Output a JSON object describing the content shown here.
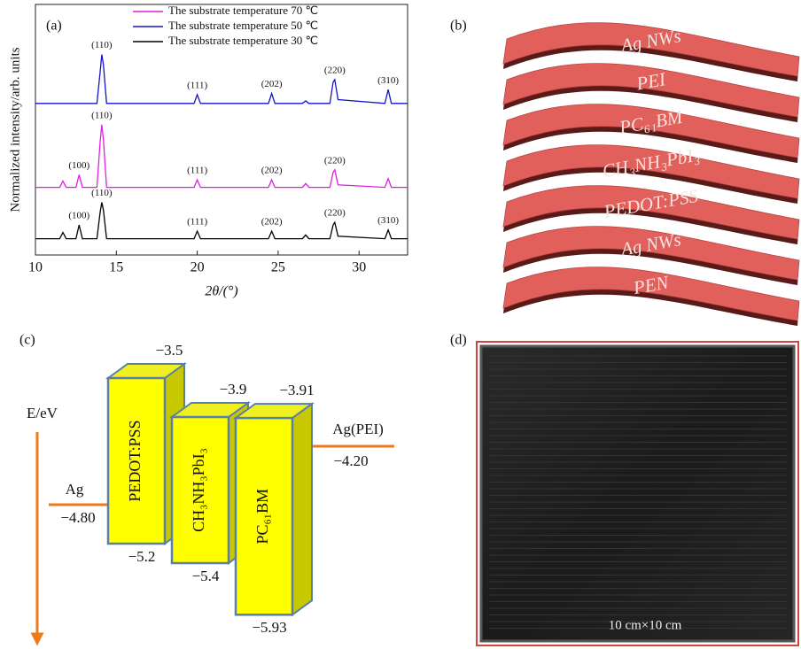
{
  "panels": {
    "a": "(a)",
    "b": "(b)",
    "c": "(c)",
    "d": "(d)"
  },
  "chart_data": {
    "type": "line",
    "x_label": "2θ/(°)",
    "y_label": "Normalized intensity/arb. units",
    "x": [
      10,
      11.5,
      11.7,
      11.9,
      12.5,
      12.7,
      12.9,
      13.8,
      14.0,
      14.1,
      14.2,
      14.4,
      16,
      17,
      19.8,
      20.0,
      20.2,
      24.4,
      24.6,
      24.8,
      26.5,
      26.7,
      26.9,
      28.2,
      28.4,
      28.5,
      28.7,
      31.6,
      31.8,
      32.0,
      33
    ],
    "xlim": [
      10,
      33
    ],
    "xticks": [
      10,
      15,
      20,
      25,
      30
    ],
    "ylim": [
      0,
      10
    ],
    "legend": "upper right",
    "series": [
      {
        "name": "The substrate temperature 70 ℃",
        "color": "#e01ee0",
        "values": [
          2.7,
          2.7,
          2.95,
          2.7,
          2.7,
          3.2,
          2.7,
          2.7,
          4.5,
          5.2,
          4.6,
          2.7,
          2.7,
          2.7,
          2.7,
          3.0,
          2.7,
          2.7,
          3.0,
          2.7,
          2.7,
          2.85,
          2.7,
          2.7,
          3.3,
          3.4,
          2.8,
          2.7,
          3.05,
          2.7,
          2.7
        ],
        "peak_labels": [
          {
            "text": "(100)",
            "x": 12.7
          },
          {
            "text": "(110)",
            "x": 14.1
          },
          {
            "text": "(111)",
            "x": 20.0
          },
          {
            "text": "(202)",
            "x": 24.6
          },
          {
            "text": "(220)",
            "x": 28.5
          }
        ]
      },
      {
        "name": "The substrate temperature 50 ℃",
        "color": "#1414c8",
        "values": [
          6.05,
          6.05,
          6.05,
          6.05,
          6.05,
          6.05,
          6.05,
          6.05,
          7.3,
          8.0,
          7.6,
          6.05,
          6.05,
          6.05,
          6.05,
          6.4,
          6.05,
          6.05,
          6.45,
          6.05,
          6.05,
          6.15,
          6.05,
          6.05,
          6.9,
          7.0,
          6.2,
          6.05,
          6.6,
          6.05,
          6.05
        ],
        "peak_labels": [
          {
            "text": "(110)",
            "x": 14.1
          },
          {
            "text": "(111)",
            "x": 20.0
          },
          {
            "text": "(202)",
            "x": 24.6
          },
          {
            "text": "(220)",
            "x": 28.5
          },
          {
            "text": "(310)",
            "x": 31.8
          }
        ]
      },
      {
        "name": "The substrate temperature 30 ℃",
        "color": "#000000",
        "values": [
          0.65,
          0.65,
          0.9,
          0.65,
          0.65,
          1.2,
          0.65,
          0.65,
          1.7,
          2.1,
          1.8,
          0.65,
          0.65,
          0.65,
          0.65,
          0.95,
          0.65,
          0.65,
          0.95,
          0.65,
          0.65,
          0.8,
          0.65,
          0.65,
          1.2,
          1.3,
          0.75,
          0.65,
          1.0,
          0.65,
          0.65
        ],
        "peak_labels": [
          {
            "text": "(100)",
            "x": 12.7
          },
          {
            "text": "(110)",
            "x": 14.1
          },
          {
            "text": "(111)",
            "x": 20.0
          },
          {
            "text": "(202)",
            "x": 24.6
          },
          {
            "text": "(220)",
            "x": 28.5
          },
          {
            "text": "(310)",
            "x": 31.8
          }
        ]
      }
    ]
  },
  "stack": {
    "layers": [
      "Ag NWs",
      "PEI",
      "PC₆₁BM",
      "CH₃NH₃PbI₃",
      "PEDOT:PSS",
      "Ag NWs",
      "PEN"
    ]
  },
  "energy": {
    "axis_label": "E/eV",
    "left_electrode": {
      "name": "Ag",
      "level": -4.8,
      "label": "−4.80"
    },
    "right_electrode": {
      "name": "Ag(PEI)",
      "level": -4.2,
      "label": "−4.20"
    },
    "blocks": [
      {
        "name": "PEDOT:PSS",
        "top": -3.5,
        "top_label": "−3.5",
        "bottom": -5.2,
        "bottom_label": "−5.2"
      },
      {
        "name": "CH₃NH₃PbI₃",
        "top": -3.9,
        "top_label": "−3.9",
        "bottom": -5.4,
        "bottom_label": "−5.4"
      },
      {
        "name": "PC₆₁BM",
        "top": -3.91,
        "top_label": "−3.91",
        "bottom": -5.93,
        "bottom_label": "−5.93"
      }
    ]
  },
  "photo": {
    "caption": "10 cm×10 cm"
  }
}
